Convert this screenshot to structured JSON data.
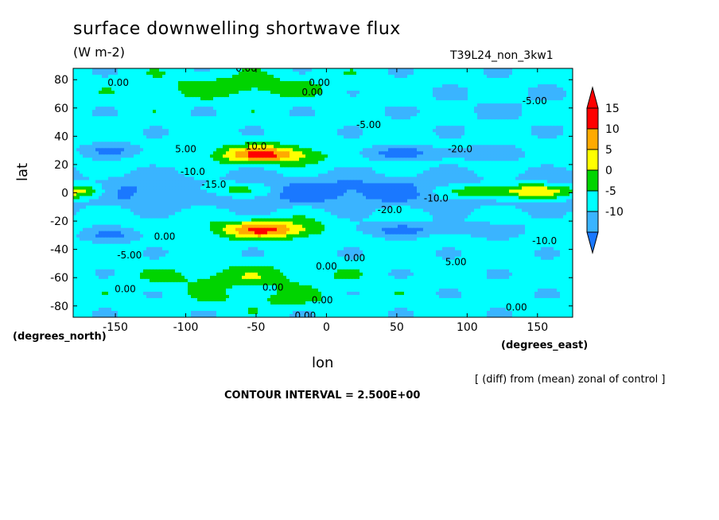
{
  "title": "surface downwelling shortwave flux",
  "units": "(W m-2)",
  "run_id": "T39L24_non_3kw1",
  "note": "[ (diff) from (mean) zonal of control ]",
  "contour_interval": "CONTOUR INTERVAL = 2.500E+00",
  "x_unit_label": "(degrees_east)",
  "y_unit_label": "(degrees_north)",
  "colors": {
    "lt_neg10": "#1a78ff",
    "neg10_neg5": "#3ab4ff",
    "neg5_0": "#00ffff",
    "0_5": "#00d400",
    "5_10": "#ffff00",
    "10_15": "#ffaa00",
    "gt_15": "#ff0000"
  },
  "chart_data": {
    "type": "heatmap",
    "title": "surface downwelling shortwave flux",
    "units": "(W m-2)",
    "xlabel": "lon",
    "ylabel": "lat",
    "xlim": [
      -180,
      175
    ],
    "ylim": [
      -88,
      88
    ],
    "x_ticks": [
      -150,
      -100,
      -50,
      0,
      50,
      100,
      150
    ],
    "y_ticks": [
      -80,
      -60,
      -40,
      -20,
      0,
      20,
      40,
      60,
      80
    ],
    "colorbar_levels": [
      -10,
      -5,
      0,
      5,
      10,
      15
    ],
    "colorbar_extends": "both",
    "contour_labels": [
      {
        "text": "0.00",
        "lon": -148,
        "lat": 78
      },
      {
        "text": "0.00",
        "lon": -57,
        "lat": 88
      },
      {
        "text": "0.00",
        "lon": -5,
        "lat": 78
      },
      {
        "text": "0.00",
        "lon": -10,
        "lat": 71
      },
      {
        "text": "-5.00",
        "lon": 148,
        "lat": 65
      },
      {
        "text": "-5.00",
        "lon": 30,
        "lat": 48
      },
      {
        "text": "5.00",
        "lon": -100,
        "lat": 31
      },
      {
        "text": "10.0",
        "lon": -50,
        "lat": 33
      },
      {
        "text": "-20.0",
        "lon": 95,
        "lat": 31
      },
      {
        "text": "-10.0",
        "lon": -95,
        "lat": 15
      },
      {
        "text": "-15.0",
        "lon": -80,
        "lat": 6
      },
      {
        "text": "-20.0",
        "lon": 45,
        "lat": -12
      },
      {
        "text": "-10.0",
        "lon": 78,
        "lat": -4
      },
      {
        "text": "0.00",
        "lon": -115,
        "lat": -31
      },
      {
        "text": "0.00",
        "lon": 20,
        "lat": -46
      },
      {
        "text": "0.00",
        "lon": 0,
        "lat": -52
      },
      {
        "text": "-5.00",
        "lon": -140,
        "lat": -44
      },
      {
        "text": "-10.0",
        "lon": 155,
        "lat": -34
      },
      {
        "text": "0.00",
        "lon": -143,
        "lat": -68
      },
      {
        "text": "0.00",
        "lon": -38,
        "lat": -67
      },
      {
        "text": "0.00",
        "lon": -3,
        "lat": -76
      },
      {
        "text": "0.00",
        "lon": -15,
        "lat": -87
      },
      {
        "text": "5.00",
        "lon": 92,
        "lat": -49
      },
      {
        "text": "0.00",
        "lon": 135,
        "lat": -81
      }
    ]
  }
}
